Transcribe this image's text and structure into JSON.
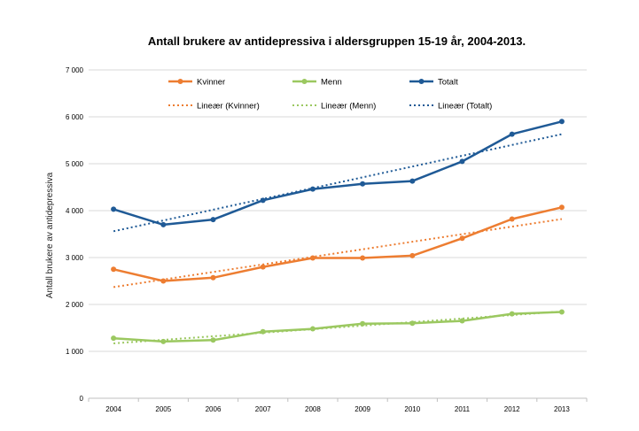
{
  "chart_data": {
    "type": "line",
    "title": "Antall brukere av antidepressiva i aldersgruppen 15-19 år, 2004-2013.",
    "xlabel": "",
    "ylabel": "Antall brukere av antidepressiva",
    "categories": [
      "2004",
      "2005",
      "2006",
      "2007",
      "2008",
      "2009",
      "2010",
      "2011",
      "2012",
      "2013"
    ],
    "ylim": [
      0,
      7000
    ],
    "yticks": [
      0,
      1000,
      2000,
      3000,
      4000,
      5000,
      6000,
      7000
    ],
    "ytick_labels": [
      "0",
      "1 000",
      "2 000",
      "3 000",
      "4 000",
      "5 000",
      "6 000",
      "7 000"
    ],
    "grid": "horizontal",
    "legend_position": "top-center",
    "series": [
      {
        "name": "Kvinner",
        "color": "#ed7d31",
        "values": [
          2750,
          2500,
          2570,
          2800,
          2990,
          2990,
          3040,
          3410,
          3820,
          4070
        ]
      },
      {
        "name": "Menn",
        "color": "#9bc860",
        "values": [
          1280,
          1210,
          1240,
          1420,
          1480,
          1590,
          1600,
          1650,
          1800,
          1840
        ]
      },
      {
        "name": "Totalt",
        "color": "#1f5a96",
        "values": [
          4030,
          3700,
          3810,
          4220,
          4460,
          4570,
          4630,
          5050,
          5630,
          5900
        ]
      }
    ],
    "trendlines": [
      {
        "name": "Lineær (Kvinner)",
        "color": "#ed7d31",
        "start": 2370,
        "end": 3820
      },
      {
        "name": "Lineær (Menn)",
        "color": "#9bc860",
        "start": 1170,
        "end": 1850
      },
      {
        "name": "Lineær (Totalt)",
        "color": "#1f5a96",
        "start": 3560,
        "end": 5630
      }
    ]
  }
}
